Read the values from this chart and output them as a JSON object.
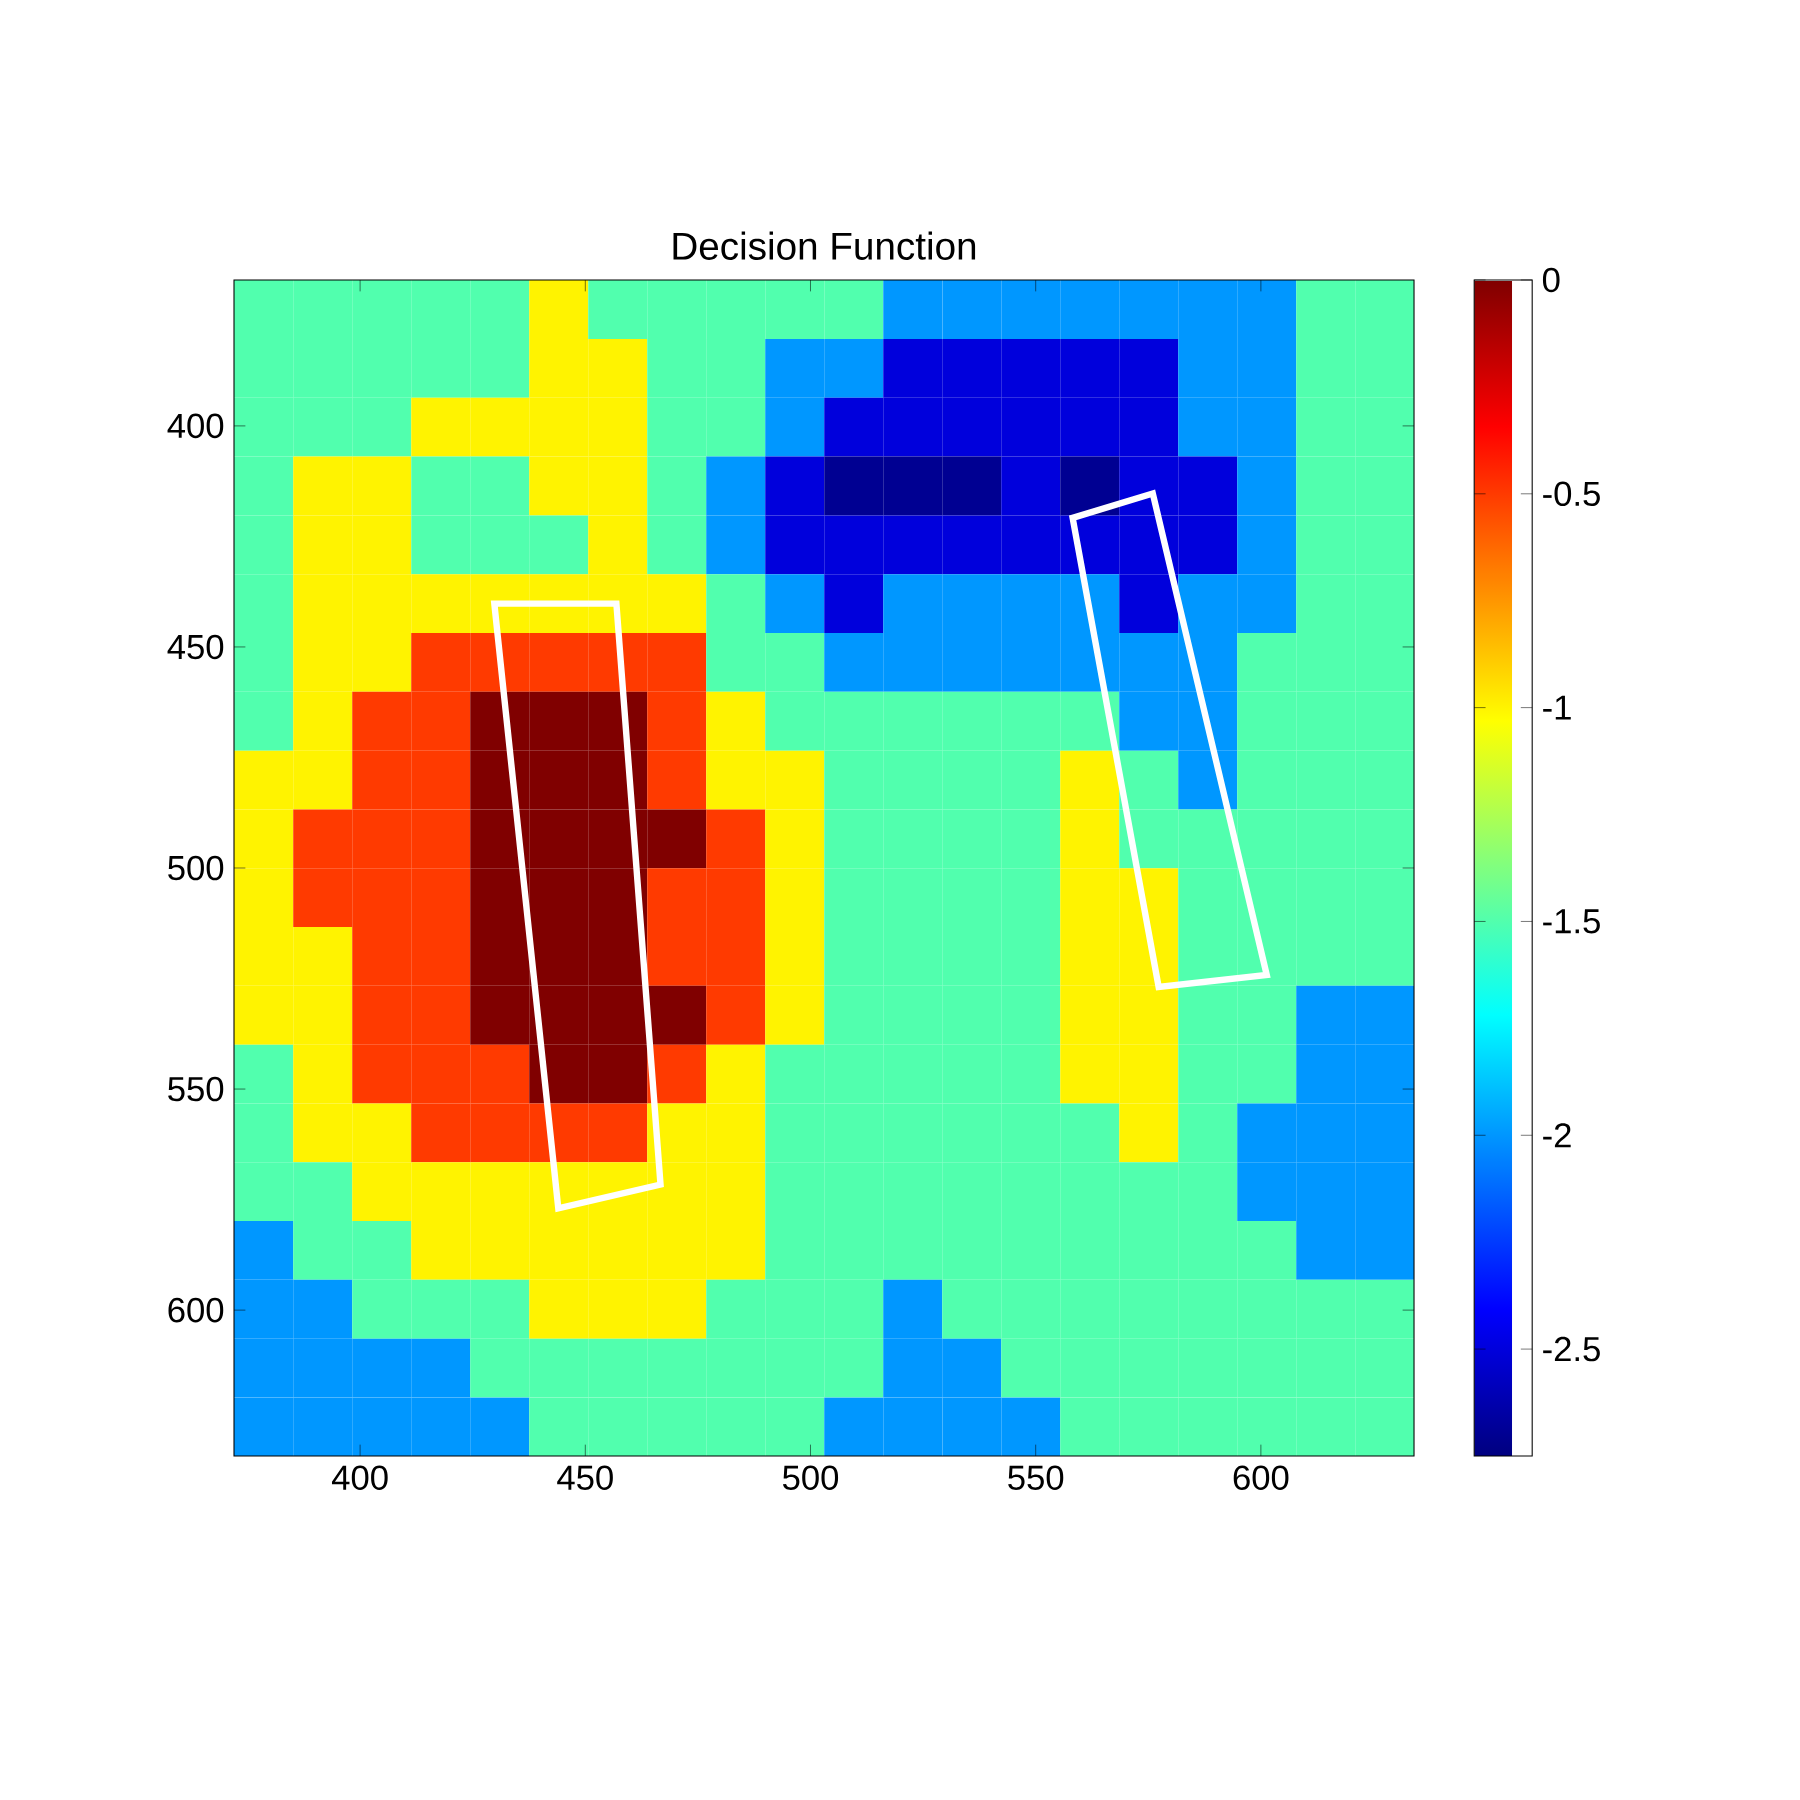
{
  "chart_data": {
    "type": "heatmap",
    "title": "Decision Function",
    "x": [
      378.6,
      391.7,
      404.8,
      417.9,
      431.0,
      444.1,
      457.2,
      470.3,
      483.4,
      496.5,
      509.6,
      522.7,
      535.8,
      548.9,
      562.0,
      575.1,
      588.2,
      601.3,
      614.4,
      627.5
    ],
    "y": [
      373.7,
      387.0,
      400.3,
      413.6,
      426.9,
      440.2,
      453.5,
      466.8,
      480.1,
      493.4,
      506.7,
      520.0,
      533.3,
      546.6,
      559.9,
      573.2,
      586.5,
      599.8,
      613.1,
      626.4
    ],
    "cells": [
      [
        -1.5,
        -1.5,
        -1.5,
        -1.5,
        -1.5,
        -1,
        -1.5,
        -1.5,
        -1.5,
        -1.5,
        -1.5,
        -2,
        -2,
        -2,
        -2,
        -2,
        -2,
        -2,
        -1.5,
        -1.5
      ],
      [
        -1.5,
        -1.5,
        -1.5,
        -1.5,
        -1.5,
        -1,
        -1,
        -1.5,
        -1.5,
        -2,
        -2,
        -2.5,
        -2.5,
        -2.5,
        -2.5,
        -2.5,
        -2,
        -2,
        -1.5,
        -1.5
      ],
      [
        -1.5,
        -1.5,
        -1.5,
        -1,
        -1,
        -1,
        -1,
        -1.5,
        -1.5,
        -2,
        -2.5,
        -2.5,
        -2.5,
        -2.5,
        -2.5,
        -2.5,
        -2,
        -2,
        -1.5,
        -1.5
      ],
      [
        -1.5,
        -1,
        -1,
        -1.5,
        -1.5,
        -1,
        -1,
        -1.5,
        -2,
        -2.5,
        -2.7,
        -2.7,
        -2.7,
        -2.5,
        -2.7,
        -2.5,
        -2.5,
        -2,
        -1.5,
        -1.5
      ],
      [
        -1.5,
        -1,
        -1,
        -1.5,
        -1.5,
        -1.5,
        -1,
        -1.5,
        -2,
        -2.5,
        -2.5,
        -2.5,
        -2.5,
        -2.5,
        -2.5,
        -2.5,
        -2.5,
        -2,
        -1.5,
        -1.5
      ],
      [
        -1.5,
        -1,
        -1,
        -1,
        -1,
        -1,
        -1,
        -1,
        -1.5,
        -2,
        -2.5,
        -2,
        -2,
        -2,
        -2,
        -2.5,
        -2,
        -2,
        -1.5,
        -1.5
      ],
      [
        -1.5,
        -1,
        -1,
        -0.5,
        -0.5,
        -0.5,
        -0.5,
        -0.5,
        -1.5,
        -1.5,
        -2,
        -2,
        -2,
        -2,
        -2,
        -2,
        -2,
        -1.5,
        -1.5,
        -1.5
      ],
      [
        -1.5,
        -1,
        -0.5,
        -0.5,
        0,
        0,
        0,
        -0.5,
        -1,
        -1.5,
        -1.5,
        -1.5,
        -1.5,
        -1.5,
        -1.5,
        -2,
        -2,
        -1.5,
        -1.5,
        -1.5
      ],
      [
        -1,
        -1,
        -0.5,
        -0.5,
        0,
        0,
        0,
        -0.5,
        -1,
        -1,
        -1.5,
        -1.5,
        -1.5,
        -1.5,
        -1,
        -1.5,
        -2,
        -1.5,
        -1.5,
        -1.5
      ],
      [
        -1,
        -0.5,
        -0.5,
        -0.5,
        0,
        0,
        0,
        0,
        -0.5,
        -1,
        -1.5,
        -1.5,
        -1.5,
        -1.5,
        -1,
        -1.5,
        -1.5,
        -1.5,
        -1.5,
        -1.5
      ],
      [
        -1,
        -0.5,
        -0.5,
        -0.5,
        0,
        0,
        0,
        -0.5,
        -0.5,
        -1,
        -1.5,
        -1.5,
        -1.5,
        -1.5,
        -1,
        -1,
        -1.5,
        -1.5,
        -1.5,
        -1.5
      ],
      [
        -1,
        -1,
        -0.5,
        -0.5,
        0,
        0,
        0,
        -0.5,
        -0.5,
        -1,
        -1.5,
        -1.5,
        -1.5,
        -1.5,
        -1,
        -1,
        -1.5,
        -1.5,
        -1.5,
        -1.5
      ],
      [
        -1,
        -1,
        -0.5,
        -0.5,
        0,
        0,
        0,
        0,
        -0.5,
        -1,
        -1.5,
        -1.5,
        -1.5,
        -1.5,
        -1,
        -1,
        -1.5,
        -1.5,
        -2,
        -2
      ],
      [
        -1.5,
        -1,
        -0.5,
        -0.5,
        -0.5,
        0,
        0,
        -0.5,
        -1,
        -1.5,
        -1.5,
        -1.5,
        -1.5,
        -1.5,
        -1,
        -1,
        -1.5,
        -1.5,
        -2,
        -2
      ],
      [
        -1.5,
        -1,
        -1,
        -0.5,
        -0.5,
        -0.5,
        -0.5,
        -1,
        -1,
        -1.5,
        -1.5,
        -1.5,
        -1.5,
        -1.5,
        -1.5,
        -1,
        -1.5,
        -2,
        -2,
        -2
      ],
      [
        -1.5,
        -1.5,
        -1,
        -1,
        -1,
        -1,
        -1,
        -1,
        -1,
        -1.5,
        -1.5,
        -1.5,
        -1.5,
        -1.5,
        -1.5,
        -1.5,
        -1.5,
        -2,
        -2,
        -2
      ],
      [
        -2,
        -1.5,
        -1.5,
        -1,
        -1,
        -1,
        -1,
        -1,
        -1,
        -1.5,
        -1.5,
        -1.5,
        -1.5,
        -1.5,
        -1.5,
        -1.5,
        -1.5,
        -1.5,
        -2,
        -2
      ],
      [
        -2,
        -2,
        -1.5,
        -1.5,
        -1.5,
        -1,
        -1,
        -1,
        -1.5,
        -1.5,
        -1.5,
        -2,
        -1.5,
        -1.5,
        -1.5,
        -1.5,
        -1.5,
        -1.5,
        -1.5,
        -1.5
      ],
      [
        -2,
        -2,
        -2,
        -2,
        -1.5,
        -1.5,
        -1.5,
        -1.5,
        -1.5,
        -1.5,
        -1.5,
        -2,
        -2,
        -1.5,
        -1.5,
        -1.5,
        -1.5,
        -1.5,
        -1.5,
        -1.5
      ],
      [
        -2,
        -2,
        -2,
        -2,
        -2,
        -1.5,
        -1.5,
        -1.5,
        -1.5,
        -1.5,
        -2,
        -2,
        -2,
        -2,
        -1.5,
        -1.5,
        -1.5,
        -1.5,
        -1.5,
        -1.5
      ]
    ],
    "xlim": [
      372,
      634
    ],
    "ylim": [
      633,
      367
    ],
    "xticks": [
      400,
      450,
      500,
      550,
      600
    ],
    "yticks": [
      400,
      450,
      500,
      550,
      600
    ],
    "clim": [
      -2.75,
      0
    ],
    "cticks": [
      0,
      -0.5,
      -1,
      -1.5,
      -2,
      -2.5
    ]
  }
}
